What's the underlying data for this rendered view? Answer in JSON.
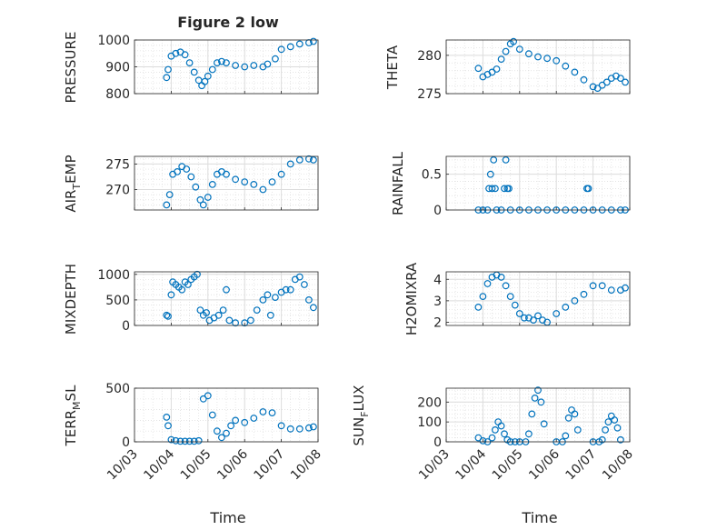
{
  "figure_title": "Figure 2 low",
  "colors": {
    "marker": "#0072bd",
    "axis": "#262626",
    "grid": "#dcdcdc",
    "background": "#ffffff"
  },
  "chart_data": [
    {
      "type": "scatter",
      "ylabel": "PRESSURE",
      "ylim": [
        800,
        1000
      ],
      "yticks": [
        800,
        900,
        1000
      ],
      "xlim": [
        "2023-10-03",
        "2023-10-08"
      ],
      "grid": true,
      "x": [
        "2023-10-03 21:00",
        "2023-10-03 22:00",
        "2023-10-04 00:00",
        "2023-10-04 03:00",
        "2023-10-04 06:00",
        "2023-10-04 09:00",
        "2023-10-04 12:00",
        "2023-10-04 15:00",
        "2023-10-04 18:00",
        "2023-10-04 20:00",
        "2023-10-04 22:00",
        "2023-10-05 00:00",
        "2023-10-05 03:00",
        "2023-10-05 06:00",
        "2023-10-05 09:00",
        "2023-10-05 12:00",
        "2023-10-05 18:00",
        "2023-10-06 00:00",
        "2023-10-06 06:00",
        "2023-10-06 12:00",
        "2023-10-06 15:00",
        "2023-10-06 20:00",
        "2023-10-07 00:00",
        "2023-10-07 06:00",
        "2023-10-07 12:00",
        "2023-10-07 18:00",
        "2023-10-07 21:00"
      ],
      "y": [
        860,
        890,
        940,
        950,
        955,
        945,
        915,
        880,
        850,
        830,
        845,
        865,
        890,
        915,
        920,
        915,
        905,
        900,
        905,
        900,
        910,
        930,
        965,
        975,
        985,
        990,
        995
      ]
    },
    {
      "type": "scatter",
      "ylabel": "THETA",
      "ylim": [
        275,
        282
      ],
      "yticks": [
        275,
        280
      ],
      "xlim": [
        "2023-10-03",
        "2023-10-08"
      ],
      "grid": true,
      "x": [
        "2023-10-03 21:00",
        "2023-10-04 00:00",
        "2023-10-04 03:00",
        "2023-10-04 06:00",
        "2023-10-04 09:00",
        "2023-10-04 12:00",
        "2023-10-04 15:00",
        "2023-10-04 18:00",
        "2023-10-04 20:00",
        "2023-10-05 00:00",
        "2023-10-05 06:00",
        "2023-10-05 12:00",
        "2023-10-05 18:00",
        "2023-10-06 00:00",
        "2023-10-06 06:00",
        "2023-10-06 12:00",
        "2023-10-06 18:00",
        "2023-10-07 00:00",
        "2023-10-07 03:00",
        "2023-10-07 06:00",
        "2023-10-07 09:00",
        "2023-10-07 12:00",
        "2023-10-07 15:00",
        "2023-10-07 18:00",
        "2023-10-07 21:00"
      ],
      "y": [
        278.3,
        277.2,
        277.5,
        277.8,
        278.2,
        279.5,
        280.5,
        281.5,
        281.8,
        280.8,
        280.2,
        279.8,
        279.6,
        279.3,
        278.6,
        277.8,
        276.8,
        275.9,
        275.7,
        276.1,
        276.5,
        277.0,
        277.3,
        277.0,
        276.5
      ]
    },
    {
      "type": "scatter",
      "ylabel": "AIR_TEMP",
      "ylim": [
        266,
        276.5
      ],
      "yticks": [
        270,
        275
      ],
      "xlim": [
        "2023-10-03",
        "2023-10-08"
      ],
      "grid": true,
      "x": [
        "2023-10-03 21:00",
        "2023-10-03 23:00",
        "2023-10-04 01:00",
        "2023-10-04 04:00",
        "2023-10-04 07:00",
        "2023-10-04 10:00",
        "2023-10-04 13:00",
        "2023-10-04 16:00",
        "2023-10-04 19:00",
        "2023-10-04 21:00",
        "2023-10-05 00:00",
        "2023-10-05 03:00",
        "2023-10-05 06:00",
        "2023-10-05 09:00",
        "2023-10-05 12:00",
        "2023-10-05 18:00",
        "2023-10-06 00:00",
        "2023-10-06 06:00",
        "2023-10-06 12:00",
        "2023-10-06 18:00",
        "2023-10-07 00:00",
        "2023-10-07 06:00",
        "2023-10-07 12:00",
        "2023-10-07 18:00",
        "2023-10-07 21:00"
      ],
      "y": [
        267.0,
        269.0,
        273.0,
        273.5,
        274.5,
        274.0,
        272.5,
        270.5,
        268.0,
        267.0,
        268.5,
        271.0,
        273.0,
        273.5,
        273.0,
        272.0,
        271.5,
        271.0,
        270.0,
        271.5,
        273.0,
        275.0,
        275.8,
        276.0,
        275.8
      ]
    },
    {
      "type": "scatter",
      "ylabel": "RAINFALL",
      "ylim": [
        0,
        0.75
      ],
      "yticks": [
        0,
        0.5
      ],
      "xlim": [
        "2023-10-03",
        "2023-10-08"
      ],
      "grid": true,
      "x": [
        "2023-10-03 21:00",
        "2023-10-04 00:00",
        "2023-10-04 03:00",
        "2023-10-04 04:00",
        "2023-10-04 05:00",
        "2023-10-04 06:00",
        "2023-10-04 07:00",
        "2023-10-04 08:00",
        "2023-10-04 09:00",
        "2023-10-04 12:00",
        "2023-10-04 14:00",
        "2023-10-04 15:00",
        "2023-10-04 16:00",
        "2023-10-04 17:00",
        "2023-10-04 18:00",
        "2023-10-05 00:00",
        "2023-10-05 06:00",
        "2023-10-05 12:00",
        "2023-10-05 18:00",
        "2023-10-06 00:00",
        "2023-10-06 06:00",
        "2023-10-06 12:00",
        "2023-10-06 18:00",
        "2023-10-06 20:00",
        "2023-10-06 21:00",
        "2023-10-07 00:00",
        "2023-10-07 06:00",
        "2023-10-07 12:00",
        "2023-10-07 18:00",
        "2023-10-07 21:00"
      ],
      "y": [
        0,
        0,
        0,
        0.3,
        0.5,
        0.3,
        0.7,
        0.3,
        0,
        0,
        0.3,
        0.7,
        0.3,
        0.3,
        0,
        0,
        0,
        0,
        0,
        0,
        0,
        0,
        0,
        0.3,
        0.3,
        0,
        0,
        0,
        0,
        0
      ]
    },
    {
      "type": "scatter",
      "ylabel": "MIXDEPTH",
      "ylim": [
        0,
        1050
      ],
      "yticks": [
        0,
        500,
        1000
      ],
      "xlim": [
        "2023-10-03",
        "2023-10-08"
      ],
      "grid": true,
      "x": [
        "2023-10-03 21:00",
        "2023-10-03 22:00",
        "2023-10-04 00:00",
        "2023-10-04 01:00",
        "2023-10-04 03:00",
        "2023-10-04 05:00",
        "2023-10-04 07:00",
        "2023-10-04 09:00",
        "2023-10-04 11:00",
        "2023-10-04 13:00",
        "2023-10-04 15:00",
        "2023-10-04 17:00",
        "2023-10-04 19:00",
        "2023-10-04 21:00",
        "2023-10-04 23:00",
        "2023-10-05 01:00",
        "2023-10-05 04:00",
        "2023-10-05 07:00",
        "2023-10-05 10:00",
        "2023-10-05 12:00",
        "2023-10-05 14:00",
        "2023-10-05 18:00",
        "2023-10-06 00:00",
        "2023-10-06 04:00",
        "2023-10-06 08:00",
        "2023-10-06 12:00",
        "2023-10-06 15:00",
        "2023-10-06 17:00",
        "2023-10-06 20:00",
        "2023-10-07 00:00",
        "2023-10-07 03:00",
        "2023-10-07 06:00",
        "2023-10-07 09:00",
        "2023-10-07 12:00",
        "2023-10-07 15:00",
        "2023-10-07 18:00",
        "2023-10-07 21:00"
      ],
      "y": [
        200,
        180,
        600,
        850,
        800,
        750,
        700,
        850,
        800,
        900,
        950,
        1000,
        300,
        200,
        250,
        100,
        150,
        200,
        300,
        700,
        100,
        50,
        50,
        100,
        300,
        500,
        600,
        200,
        550,
        650,
        700,
        700,
        900,
        950,
        800,
        500,
        350
      ]
    },
    {
      "type": "scatter",
      "ylabel": "H2OMIXRA",
      "ylim": [
        1.85,
        4.35
      ],
      "yticks": [
        2,
        3,
        4
      ],
      "xlim": [
        "2023-10-03",
        "2023-10-08"
      ],
      "grid": true,
      "x": [
        "2023-10-03 21:00",
        "2023-10-04 00:00",
        "2023-10-04 03:00",
        "2023-10-04 06:00",
        "2023-10-04 09:00",
        "2023-10-04 12:00",
        "2023-10-04 15:00",
        "2023-10-04 18:00",
        "2023-10-04 21:00",
        "2023-10-05 00:00",
        "2023-10-05 03:00",
        "2023-10-05 06:00",
        "2023-10-05 09:00",
        "2023-10-05 12:00",
        "2023-10-05 15:00",
        "2023-10-05 18:00",
        "2023-10-06 00:00",
        "2023-10-06 06:00",
        "2023-10-06 12:00",
        "2023-10-06 18:00",
        "2023-10-07 00:00",
        "2023-10-07 06:00",
        "2023-10-07 12:00",
        "2023-10-07 18:00",
        "2023-10-07 21:00"
      ],
      "y": [
        2.7,
        3.2,
        3.8,
        4.1,
        4.2,
        4.1,
        3.7,
        3.2,
        2.8,
        2.4,
        2.2,
        2.2,
        2.1,
        2.3,
        2.1,
        2.0,
        2.4,
        2.7,
        3.0,
        3.3,
        3.7,
        3.7,
        3.5,
        3.5,
        3.6
      ]
    },
    {
      "type": "scatter",
      "ylabel": "TERR_MSL",
      "ylim": [
        0,
        500
      ],
      "yticks": [
        0,
        500
      ],
      "xlim": [
        "2023-10-03",
        "2023-10-08"
      ],
      "grid": true,
      "x": [
        "2023-10-03 21:00",
        "2023-10-03 22:00",
        "2023-10-04 00:00",
        "2023-10-04 03:00",
        "2023-10-04 06:00",
        "2023-10-04 09:00",
        "2023-10-04 12:00",
        "2023-10-04 15:00",
        "2023-10-04 18:00",
        "2023-10-04 21:00",
        "2023-10-05 00:00",
        "2023-10-05 03:00",
        "2023-10-05 06:00",
        "2023-10-05 09:00",
        "2023-10-05 12:00",
        "2023-10-05 15:00",
        "2023-10-05 18:00",
        "2023-10-06 00:00",
        "2023-10-06 06:00",
        "2023-10-06 12:00",
        "2023-10-06 18:00",
        "2023-10-07 00:00",
        "2023-10-07 06:00",
        "2023-10-07 12:00",
        "2023-10-07 18:00",
        "2023-10-07 21:00"
      ],
      "y": [
        230,
        150,
        20,
        10,
        5,
        5,
        5,
        5,
        10,
        400,
        430,
        250,
        100,
        40,
        80,
        150,
        200,
        180,
        220,
        280,
        270,
        150,
        120,
        120,
        130,
        140
      ]
    },
    {
      "type": "scatter",
      "ylabel": "SUN_FLUX",
      "ylim": [
        0,
        270
      ],
      "yticks": [
        0,
        100,
        200
      ],
      "xlim": [
        "2023-10-03",
        "2023-10-08"
      ],
      "grid": true,
      "x": [
        "2023-10-03 21:00",
        "2023-10-04 00:00",
        "2023-10-04 03:00",
        "2023-10-04 06:00",
        "2023-10-04 08:00",
        "2023-10-04 10:00",
        "2023-10-04 12:00",
        "2023-10-04 14:00",
        "2023-10-04 16:00",
        "2023-10-04 18:00",
        "2023-10-04 21:00",
        "2023-10-05 00:00",
        "2023-10-05 04:00",
        "2023-10-05 06:00",
        "2023-10-05 08:00",
        "2023-10-05 10:00",
        "2023-10-05 12:00",
        "2023-10-05 14:00",
        "2023-10-05 16:00",
        "2023-10-06 00:00",
        "2023-10-06 04:00",
        "2023-10-06 06:00",
        "2023-10-06 08:00",
        "2023-10-06 10:00",
        "2023-10-06 12:00",
        "2023-10-06 14:00",
        "2023-10-07 00:00",
        "2023-10-07 04:00",
        "2023-10-07 06:00",
        "2023-10-07 08:00",
        "2023-10-07 10:00",
        "2023-10-07 12:00",
        "2023-10-07 14:00",
        "2023-10-07 16:00",
        "2023-10-07 18:00"
      ],
      "y": [
        20,
        5,
        0,
        20,
        60,
        100,
        80,
        40,
        10,
        0,
        0,
        0,
        0,
        40,
        140,
        220,
        260,
        200,
        90,
        0,
        0,
        30,
        120,
        160,
        140,
        60,
        0,
        0,
        10,
        60,
        100,
        130,
        110,
        70,
        10
      ]
    }
  ],
  "axes_labels": {
    "ylabels": [
      "PRESSURE",
      "THETA",
      "AIR",
      "EMP",
      "RAINFALL",
      "MIXDEPTH",
      "H2OMIXRA",
      "TERR",
      "SL",
      "SUN",
      "LUX"
    ],
    "subscripts": [
      "T",
      "M",
      "F"
    ],
    "xlabel": "Time",
    "xticklabels": [
      "10/03",
      "10/04",
      "10/05",
      "10/06",
      "10/07",
      "10/08"
    ]
  }
}
